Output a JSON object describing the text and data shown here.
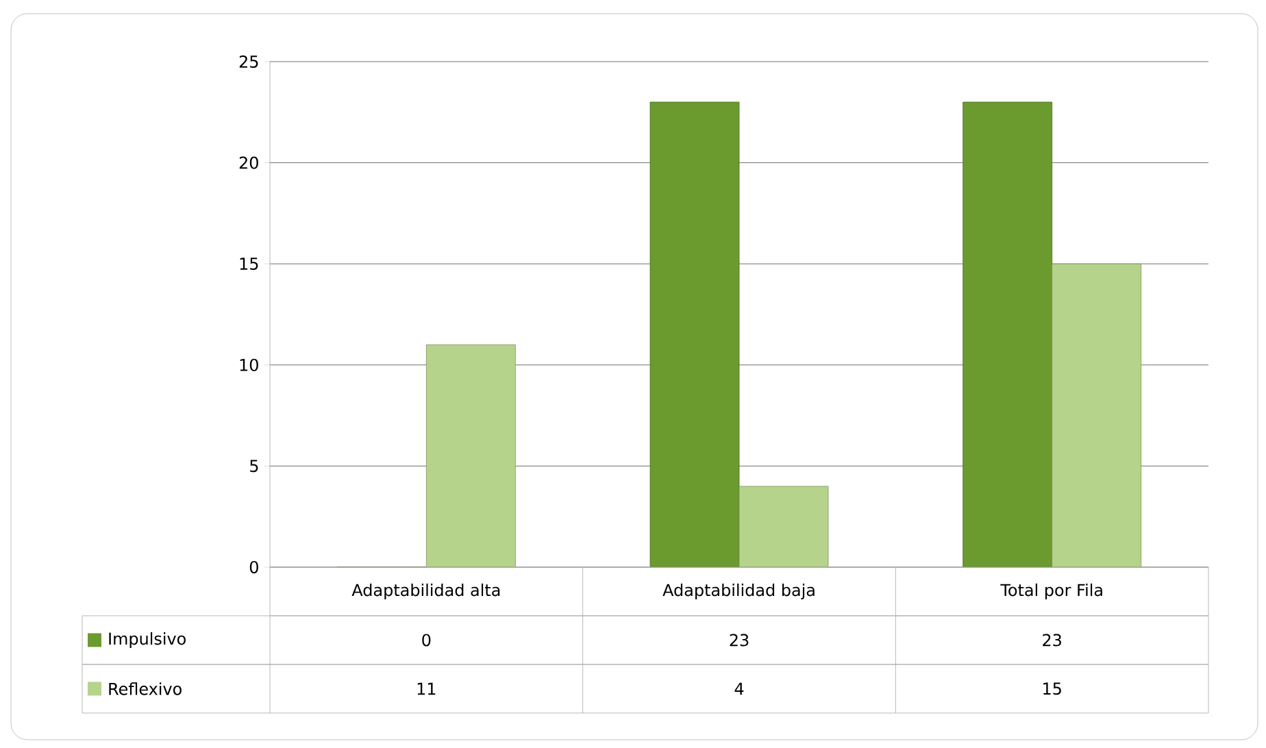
{
  "chart_data": {
    "type": "bar",
    "categories": [
      "Adaptabilidad alta",
      "Adaptabilidad baja",
      "Total por Fila"
    ],
    "series": [
      {
        "name": "Impulsivo",
        "color": "#6b9a2e",
        "values": [
          0,
          23,
          23
        ]
      },
      {
        "name": "Reflexivo",
        "color": "#b5d38a",
        "values": [
          11,
          4,
          15
        ]
      }
    ],
    "ylim": [
      0,
      25
    ],
    "yticks": [
      0,
      5,
      10,
      15,
      20,
      25
    ],
    "grid": "y",
    "data_labels": true,
    "legend": "bottom"
  }
}
